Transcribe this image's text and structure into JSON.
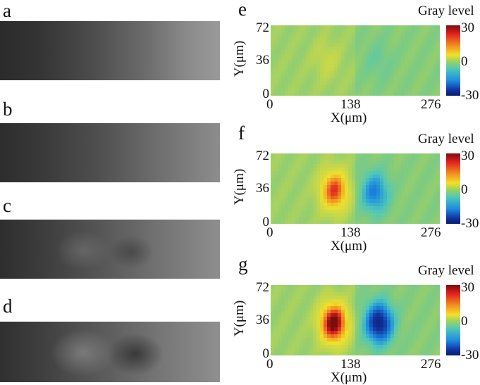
{
  "panels": {
    "a": {
      "label": "a"
    },
    "b": {
      "label": "b"
    },
    "c": {
      "label": "c"
    },
    "d": {
      "label": "d"
    },
    "e": {
      "label": "e"
    },
    "f": {
      "label": "f"
    },
    "g": {
      "label": "g"
    }
  },
  "chart_data": [
    {
      "panel": "e",
      "type": "heatmap",
      "xlabel": "X(μm)",
      "ylabel": "Y(μm)",
      "xticks": [
        "0",
        "138",
        "276"
      ],
      "yticks": [
        "0",
        "36",
        "72"
      ],
      "xlim": [
        0,
        276
      ],
      "ylim": [
        0,
        72
      ],
      "colorbar": {
        "title": "Gray level",
        "ticks": [
          "30",
          "0",
          "-30"
        ],
        "range": [
          -30,
          30
        ]
      },
      "features": [
        {
          "x": 92,
          "y": 36,
          "peak": 4
        },
        {
          "x": 175,
          "y": 36,
          "peak": -3
        }
      ]
    },
    {
      "panel": "f",
      "type": "heatmap",
      "xlabel": "X(μm)",
      "ylabel": "Y(μm)",
      "xticks": [
        "0",
        "138",
        "276"
      ],
      "yticks": [
        "0",
        "36",
        "72"
      ],
      "xlim": [
        0,
        276
      ],
      "ylim": [
        0,
        72
      ],
      "colorbar": {
        "title": "Gray level",
        "ticks": [
          "30",
          "0",
          "-30"
        ],
        "range": [
          -30,
          30
        ]
      },
      "features": [
        {
          "x": 104,
          "y": 34,
          "peak": 22
        },
        {
          "x": 170,
          "y": 32,
          "peak": -15
        }
      ]
    },
    {
      "panel": "g",
      "type": "heatmap",
      "xlabel": "X(μm)",
      "ylabel": "Y(μm)",
      "xticks": [
        "0",
        "138",
        "276"
      ],
      "yticks": [
        "0",
        "36",
        "72"
      ],
      "xlim": [
        0,
        276
      ],
      "ylim": [
        0,
        72
      ],
      "colorbar": {
        "title": "Gray level",
        "ticks": [
          "30",
          "0",
          "-30"
        ],
        "range": [
          -30,
          30
        ]
      },
      "features": [
        {
          "x": 103,
          "y": 33,
          "peak": 30
        },
        {
          "x": 177,
          "y": 33,
          "peak": -27
        }
      ]
    }
  ]
}
